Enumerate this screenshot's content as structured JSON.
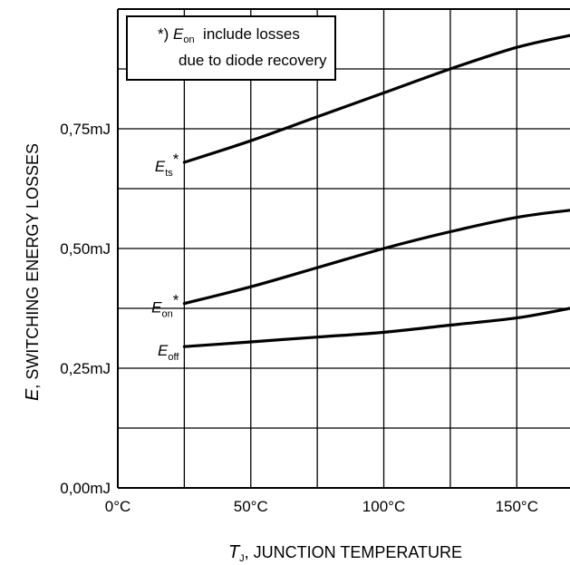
{
  "chart_data": {
    "type": "line",
    "x_unit": "°C",
    "y_unit": "mJ",
    "xlim": [
      0,
      170
    ],
    "ylim": [
      0,
      1.0
    ],
    "x_ticks": [
      {
        "value": 0,
        "label": "0°C"
      },
      {
        "value": 50,
        "label": "50°C"
      },
      {
        "value": 100,
        "label": "100°C"
      },
      {
        "value": 150,
        "label": "150°C"
      }
    ],
    "y_ticks": [
      {
        "value": 0,
        "label": "0,00mJ"
      },
      {
        "value": 0.25,
        "label": "0,25mJ"
      },
      {
        "value": 0.5,
        "label": "0,50mJ"
      },
      {
        "value": 0.75,
        "label": "0,75mJ"
      }
    ],
    "x_gridlines": [
      0,
      25,
      50,
      75,
      100,
      125,
      150
    ],
    "y_gridlines": [
      0.125,
      0.25,
      0.375,
      0.5,
      0.625,
      0.75,
      0.875
    ],
    "grid": true,
    "xlabel": {
      "symbol": "T",
      "subscript": "J",
      "text": ", JUNCTION TEMPERATURE"
    },
    "ylabel": {
      "symbol": "E",
      "text": ", SWITCHING ENERGY LOSSES"
    },
    "series": [
      {
        "name_symbol": "E",
        "name_subscript": "ts",
        "name_suffix": "*",
        "x": [
          25,
          50,
          75,
          100,
          125,
          150,
          170
        ],
        "y": [
          0.68,
          0.725,
          0.775,
          0.825,
          0.875,
          0.92,
          0.945
        ]
      },
      {
        "name_symbol": "E",
        "name_subscript": "on",
        "name_suffix": "*",
        "x": [
          25,
          50,
          75,
          100,
          125,
          150,
          170
        ],
        "y": [
          0.385,
          0.42,
          0.46,
          0.5,
          0.535,
          0.565,
          0.58
        ]
      },
      {
        "name_symbol": "E",
        "name_subscript": "off",
        "name_suffix": "",
        "x": [
          25,
          50,
          75,
          100,
          125,
          150,
          170
        ],
        "y": [
          0.295,
          0.305,
          0.315,
          0.325,
          0.34,
          0.355,
          0.375
        ]
      }
    ],
    "annotation": {
      "prefix": "*) ",
      "symbol": "E",
      "subscript": "on",
      "line1_rest": "  include losses",
      "line2": "due to diode recovery",
      "placement": "top-left"
    }
  }
}
